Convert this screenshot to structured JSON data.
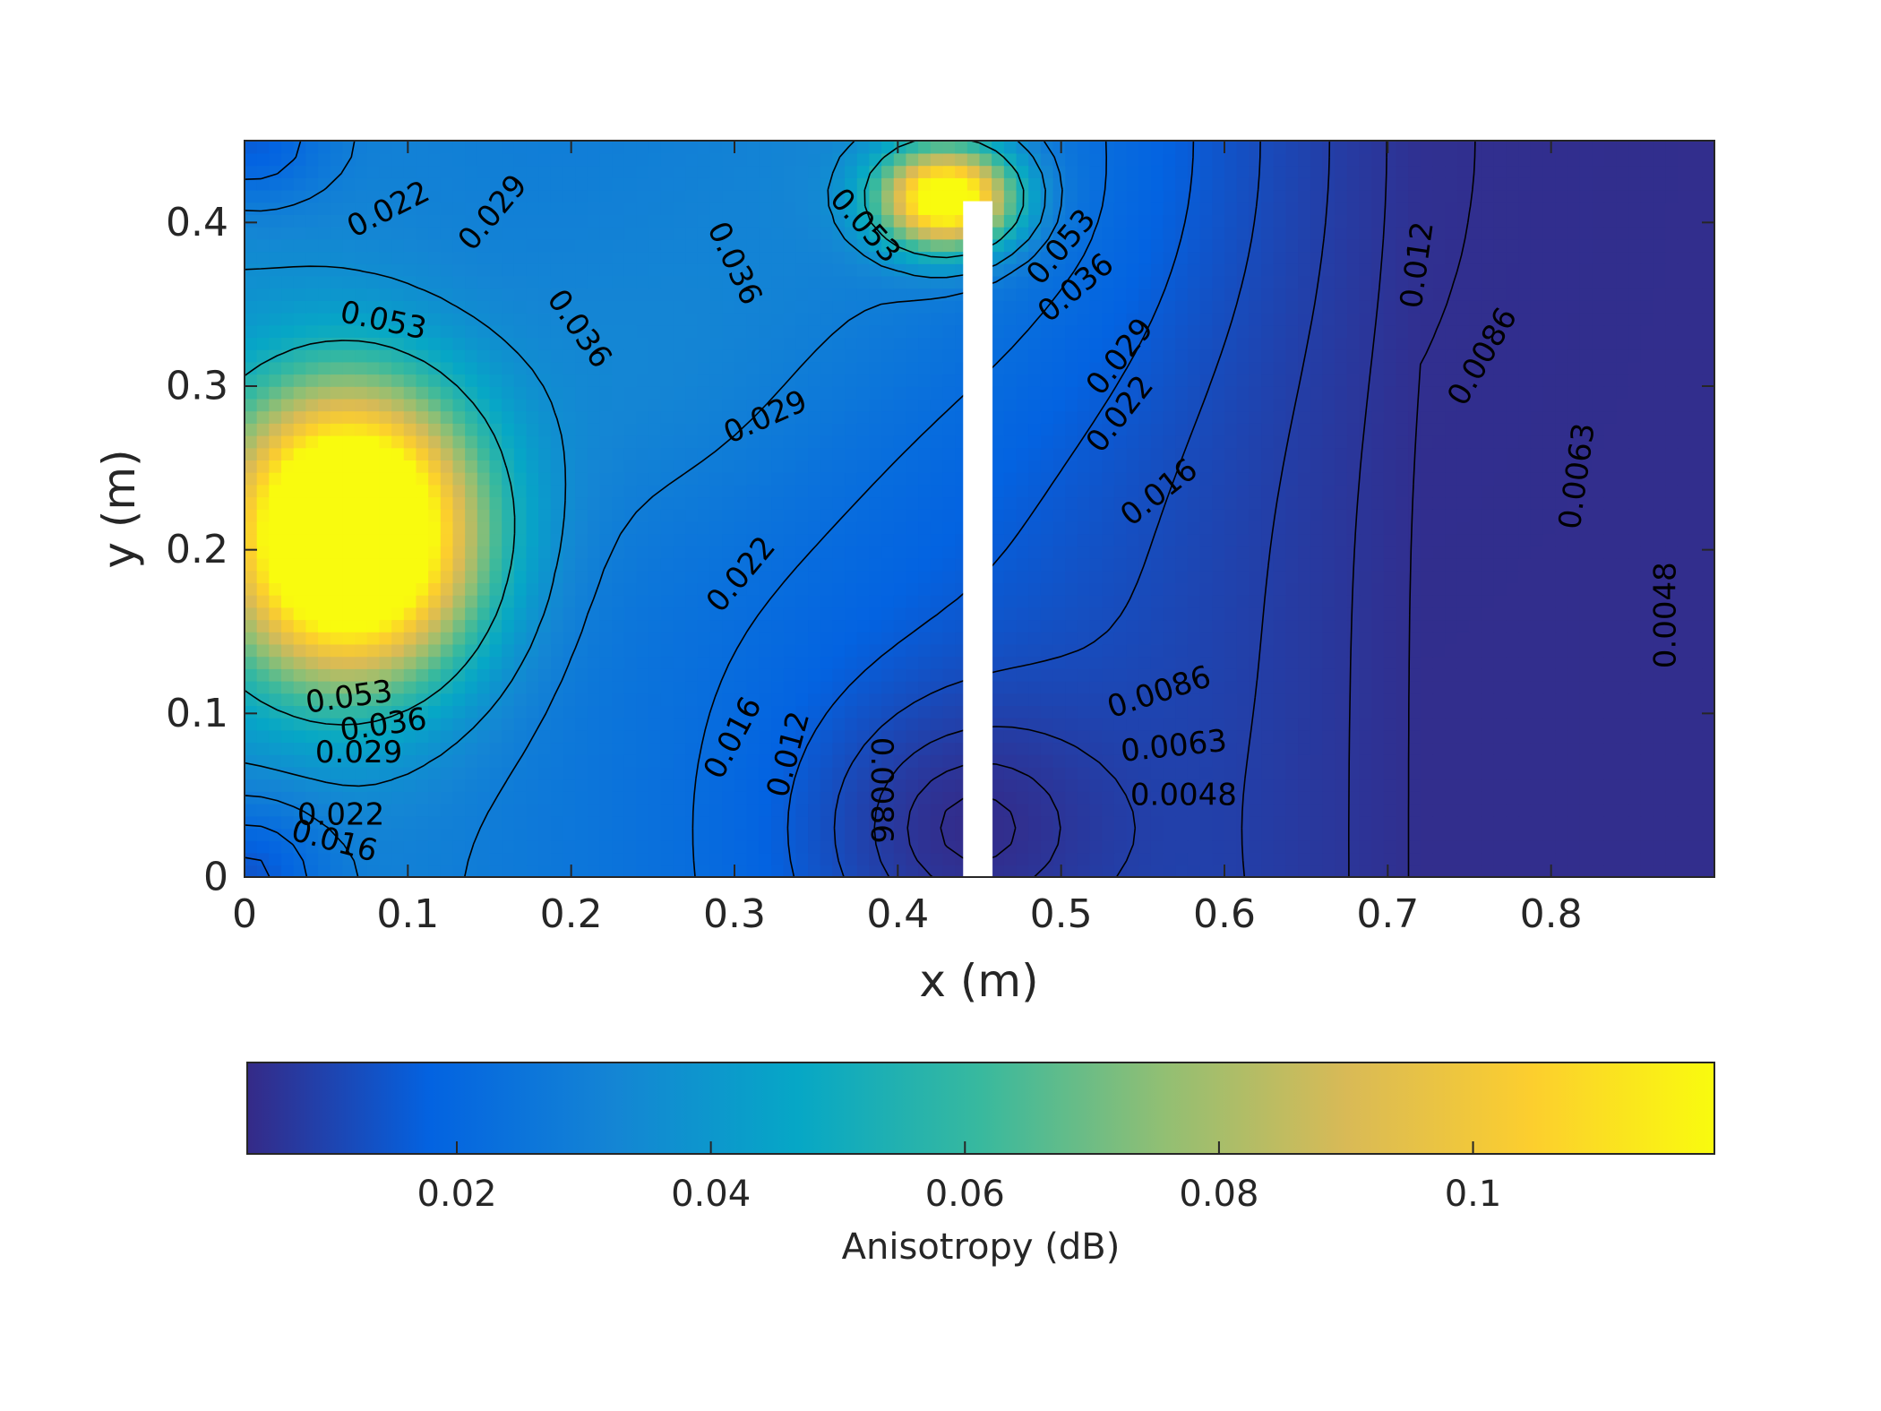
{
  "chart_data": {
    "type": "heatmap",
    "title": "",
    "xlabel": "x (m)",
    "ylabel": "y (m)",
    "xlim": [
      0,
      0.9
    ],
    "ylim": [
      0,
      0.45
    ],
    "x_ticks": [
      0,
      0.1,
      0.2,
      0.3,
      0.4,
      0.5,
      0.6,
      0.7,
      0.8
    ],
    "x_tick_labels": [
      "0",
      "0.1",
      "0.2",
      "0.3",
      "0.4",
      "0.5",
      "0.6",
      "0.7",
      "0.8"
    ],
    "y_ticks": [
      0,
      0.1,
      0.2,
      0.3,
      0.4
    ],
    "y_tick_labels": [
      "0",
      "0.1",
      "0.2",
      "0.3",
      "0.4"
    ],
    "grid": false,
    "colormap": "parula",
    "colormap_stops": [
      "#352a87",
      "#0363e1",
      "#1485d4",
      "#06a7c6",
      "#38b99e",
      "#92bf73",
      "#d9ba56",
      "#fcce2e",
      "#f9fb0e"
    ],
    "colorbar": {
      "label": "Anisotropy (dB)",
      "range": [
        0.0035,
        0.119
      ],
      "ticks": [
        0.02,
        0.04,
        0.06,
        0.08,
        0.1
      ],
      "tick_labels": [
        "0.02",
        "0.04",
        "0.06",
        "0.08",
        "0.1"
      ],
      "position": "bottom"
    },
    "obstacle": {
      "x": [
        0.44,
        0.458
      ],
      "y": [
        0,
        0.413
      ],
      "color": "#ffffff"
    },
    "hotspots": [
      {
        "x": 0.065,
        "y": 0.21,
        "sx": 0.075,
        "sy": 0.085,
        "peak": 0.14
      },
      {
        "x": 0.43,
        "y": 0.415,
        "sx": 0.04,
        "sy": 0.03,
        "peak": 0.105
      }
    ],
    "contour_levels": [
      "0.0048",
      "0.0063",
      "0.0086",
      "0.012",
      "0.016",
      "0.022",
      "0.029",
      "0.036",
      "0.053"
    ],
    "contour_labels": [
      {
        "text": "0.022",
        "x": 0.088,
        "y": 0.408,
        "angle": -27
      },
      {
        "text": "0.029",
        "x": 0.152,
        "y": 0.406,
        "angle": -50
      },
      {
        "text": "0.053",
        "x": 0.085,
        "y": 0.34,
        "angle": 12
      },
      {
        "text": "0.036",
        "x": 0.205,
        "y": 0.335,
        "angle": 55
      },
      {
        "text": "0.036",
        "x": 0.3,
        "y": 0.375,
        "angle": 65
      },
      {
        "text": "0.053",
        "x": 0.38,
        "y": 0.398,
        "angle": 48
      },
      {
        "text": "0.053",
        "x": 0.5,
        "y": 0.385,
        "angle": -50
      },
      {
        "text": "0.036",
        "x": 0.509,
        "y": 0.36,
        "angle": -40
      },
      {
        "text": "0.029",
        "x": 0.319,
        "y": 0.281,
        "angle": -24
      },
      {
        "text": "0.029",
        "x": 0.536,
        "y": 0.318,
        "angle": -52
      },
      {
        "text": "0.022",
        "x": 0.536,
        "y": 0.283,
        "angle": -52
      },
      {
        "text": "0.016",
        "x": 0.56,
        "y": 0.235,
        "angle": -38
      },
      {
        "text": "0.012",
        "x": 0.718,
        "y": 0.374,
        "angle": -82
      },
      {
        "text": "0.0086",
        "x": 0.758,
        "y": 0.318,
        "angle": -60
      },
      {
        "text": "0.0063",
        "x": 0.816,
        "y": 0.245,
        "angle": -82
      },
      {
        "text": "0.0048",
        "x": 0.87,
        "y": 0.16,
        "angle": -90
      },
      {
        "text": "0.022",
        "x": 0.304,
        "y": 0.185,
        "angle": -50
      },
      {
        "text": "0.016",
        "x": 0.299,
        "y": 0.085,
        "angle": -62
      },
      {
        "text": "0.012",
        "x": 0.333,
        "y": 0.075,
        "angle": -75
      },
      {
        "text": "0.0086",
        "x": 0.39,
        "y": 0.053,
        "angle": 90
      },
      {
        "text": "0.0086",
        "x": 0.56,
        "y": 0.113,
        "angle": -18
      },
      {
        "text": "0.0063",
        "x": 0.569,
        "y": 0.08,
        "angle": -6
      },
      {
        "text": "0.0048",
        "x": 0.575,
        "y": 0.05,
        "angle": 0
      },
      {
        "text": "0.053",
        "x": 0.064,
        "y": 0.11,
        "angle": -8
      },
      {
        "text": "0.036",
        "x": 0.085,
        "y": 0.093,
        "angle": -8
      },
      {
        "text": "0.029",
        "x": 0.07,
        "y": 0.076,
        "angle": 0
      },
      {
        "text": "0.022",
        "x": 0.059,
        "y": 0.038,
        "angle": 0
      },
      {
        "text": "0.016",
        "x": 0.055,
        "y": 0.022,
        "angle": 15
      }
    ]
  }
}
